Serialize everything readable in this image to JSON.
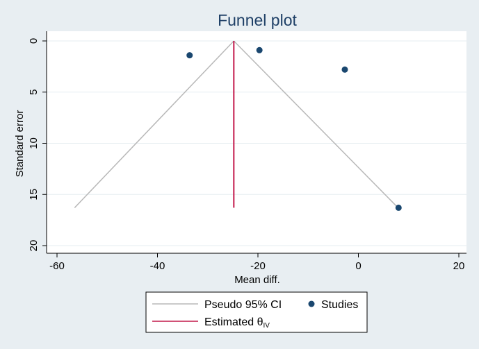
{
  "chart_data": {
    "type": "scatter",
    "title": "Funnel plot",
    "xlabel": "Mean diff.",
    "ylabel": "Standard error",
    "xlim": [
      -60,
      20
    ],
    "ylim": [
      0,
      20
    ],
    "y_reversed": true,
    "xticks": [
      -60,
      -40,
      -20,
      0,
      20
    ],
    "yticks": [
      0,
      5,
      10,
      15,
      20
    ],
    "grid": "horizontal",
    "legend_position": "bottom",
    "pooled_estimate": -24.8,
    "ci_max_se": 16.3,
    "ci_lines": {
      "left": [
        [
          -24.8,
          0
        ],
        [
          -56.5,
          16.3
        ]
      ],
      "right": [
        [
          -24.8,
          0
        ],
        [
          7.9,
          16.3
        ]
      ]
    },
    "estimate_line": [
      [
        -24.8,
        0
      ],
      [
        -24.8,
        16.3
      ]
    ],
    "series": [
      {
        "name": "Studies",
        "points": [
          {
            "x": -33.6,
            "y": 1.4
          },
          {
            "x": -19.7,
            "y": 0.9
          },
          {
            "x": -2.7,
            "y": 2.8
          },
          {
            "x": 8.0,
            "y": 16.3
          }
        ]
      }
    ],
    "legend": {
      "ci_label": "Pseudo 95% CI",
      "studies_label": "Studies",
      "estimate_label_prefix": "Estimated θ",
      "estimate_label_sub": "IV"
    },
    "colors": {
      "ci": "#b8b8b8",
      "estimate": "#c2184a",
      "points": "#1a476f",
      "title": "#1e3f66",
      "background": "#e8eef2",
      "plot_bg": "#ffffff",
      "grid": "#e6edf1"
    }
  }
}
